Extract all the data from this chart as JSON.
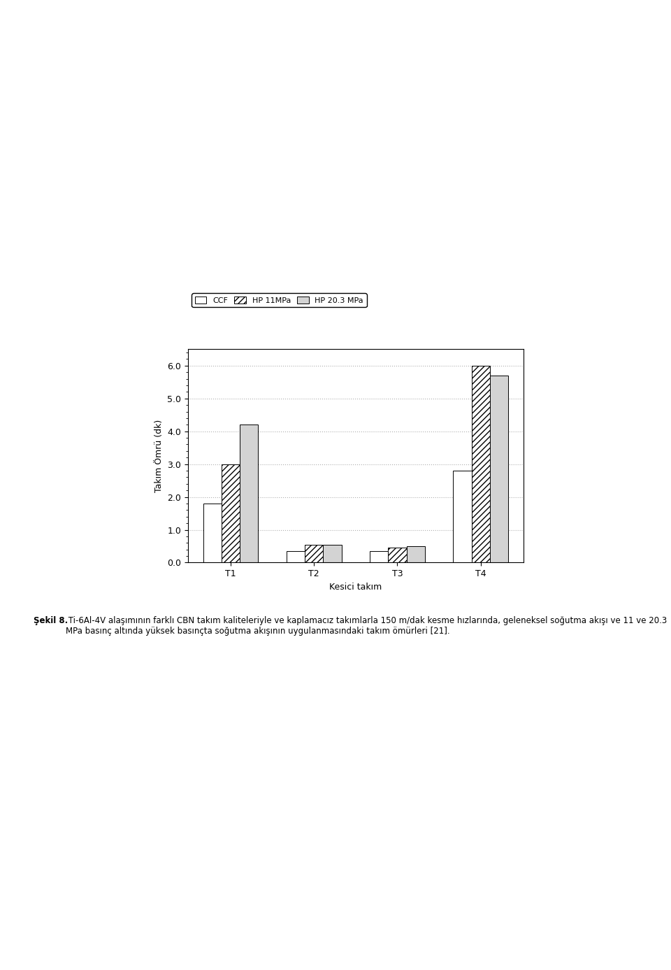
{
  "categories": [
    "T1",
    "T2",
    "T3",
    "T4"
  ],
  "series": {
    "CCF": [
      1.8,
      0.35,
      0.35,
      2.8
    ],
    "HP 11MPa": [
      3.0,
      0.55,
      0.45,
      6.0
    ],
    "HP 20.3 MPa": [
      4.2,
      0.55,
      0.5,
      5.7
    ]
  },
  "ylabel": "Takım Ömrü (dk)",
  "xlabel": "Kesici takım",
  "ylim": [
    0.0,
    6.5
  ],
  "yticks": [
    0.0,
    1.0,
    2.0,
    3.0,
    4.0,
    5.0,
    6.0
  ],
  "legend_labels": [
    "CCF",
    "HP 11MPa",
    "HP 20.3 MPa"
  ],
  "bar_width": 0.22,
  "figure_width": 9.6,
  "figure_height": 13.87,
  "dpi": 100,
  "background_color": "#ffffff",
  "title": "",
  "caption_bold": "Şekil 8.",
  "caption_text": " Ti-6Al-4V alaşımının farklı CBN takım kaliteleriyle ve kaplamасız takımlarla 150 m/dak kesme hızlarında, geleneksel soğutma akışı ve 11 ve 20.3 MPa basınç altında yüksek basınçta soğutma akışının uygulanmasındaki takım ömürleri [21].",
  "grid_color": "#b0b0b0",
  "grid_linestyle": "dotted"
}
